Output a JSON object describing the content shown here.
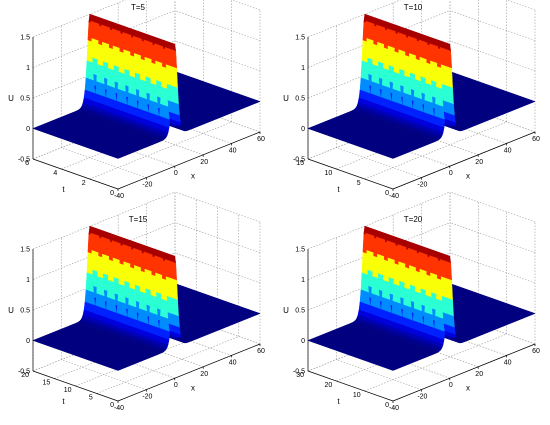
{
  "chart_data": [
    {
      "type": "surface",
      "title": "T=5",
      "xlabel": "x",
      "ylabel": "t",
      "zlabel": "U",
      "x_range": [
        -40,
        60
      ],
      "t_range": [
        0,
        6
      ],
      "z_range": [
        -0.5,
        1.5
      ],
      "x_ticks": [
        "-40",
        "-20",
        "0",
        "20",
        "40",
        "60"
      ],
      "t_ticks": [
        "0",
        "2",
        "4",
        "6"
      ],
      "z_ticks": [
        "-0.5",
        "0",
        "0.5",
        "1",
        "1.5"
      ],
      "grid": true,
      "colormap": "jet",
      "wave": {
        "amplitude": 1.5,
        "center_x": 0,
        "speed": 0,
        "width": 2.3,
        "baseline": 0
      }
    },
    {
      "type": "surface",
      "title": "T=10",
      "xlabel": "x",
      "ylabel": "t",
      "zlabel": "U",
      "x_range": [
        -40,
        60
      ],
      "t_range": [
        0,
        15
      ],
      "z_range": [
        -0.5,
        1.5
      ],
      "x_ticks": [
        "-40",
        "-20",
        "0",
        "20",
        "40",
        "60"
      ],
      "t_ticks": [
        "0",
        "5",
        "10",
        "15"
      ],
      "z_ticks": [
        "-0.5",
        "0",
        "0.5",
        "1",
        "1.5"
      ],
      "grid": true,
      "colormap": "jet",
      "wave": {
        "amplitude": 1.5,
        "center_x": 0,
        "speed": 0,
        "width": 2.3,
        "baseline": 0
      }
    },
    {
      "type": "surface",
      "title": "T=15",
      "xlabel": "x",
      "ylabel": "t",
      "zlabel": "U",
      "x_range": [
        -40,
        60
      ],
      "t_range": [
        0,
        20
      ],
      "z_range": [
        -0.5,
        1.5
      ],
      "x_ticks": [
        "-40",
        "-20",
        "0",
        "20",
        "40",
        "60"
      ],
      "t_ticks": [
        "0",
        "5",
        "10",
        "15",
        "20"
      ],
      "z_ticks": [
        "-0.5",
        "0",
        "0.5",
        "1",
        "1.5"
      ],
      "grid": true,
      "colormap": "jet",
      "wave": {
        "amplitude": 1.5,
        "center_x": 0,
        "speed": 0,
        "width": 2.3,
        "baseline": 0
      }
    },
    {
      "type": "surface",
      "title": "T=20",
      "xlabel": "x",
      "ylabel": "t",
      "zlabel": "U",
      "x_range": [
        -40,
        60
      ],
      "t_range": [
        0,
        30
      ],
      "z_range": [
        -0.5,
        1.5
      ],
      "x_ticks": [
        "-40",
        "-20",
        "0",
        "20",
        "40",
        "60"
      ],
      "t_ticks": [
        "0",
        "10",
        "20",
        "30"
      ],
      "z_ticks": [
        "-0.5",
        "0",
        "0.5",
        "1",
        "1.5"
      ],
      "grid": true,
      "colormap": "jet",
      "wave": {
        "amplitude": 1.5,
        "center_x": 0,
        "speed": 0,
        "width": 2.3,
        "baseline": 0
      }
    }
  ]
}
